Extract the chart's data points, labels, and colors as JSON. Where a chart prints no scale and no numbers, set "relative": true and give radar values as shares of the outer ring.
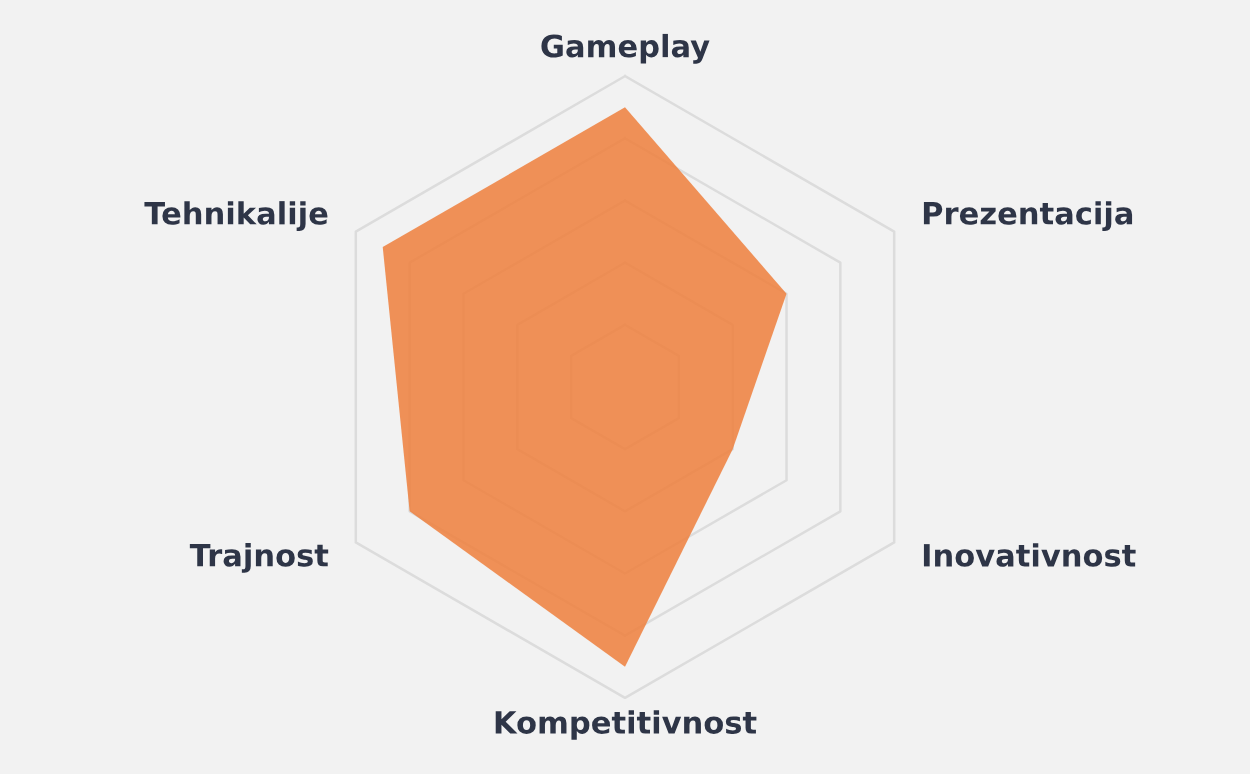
{
  "chart_data": {
    "type": "radar",
    "relative": true,
    "grid": true,
    "categories": [
      "Gameplay",
      "Prezentacija",
      "Inovativnost",
      "Kompetitivnost",
      "Trajnost",
      "Tehnikalije"
    ],
    "series": [
      {
        "color": "#ef7f3c",
        "values": [
          0.9,
          0.6,
          0.4,
          0.9,
          0.8,
          0.9
        ]
      }
    ]
  }
}
